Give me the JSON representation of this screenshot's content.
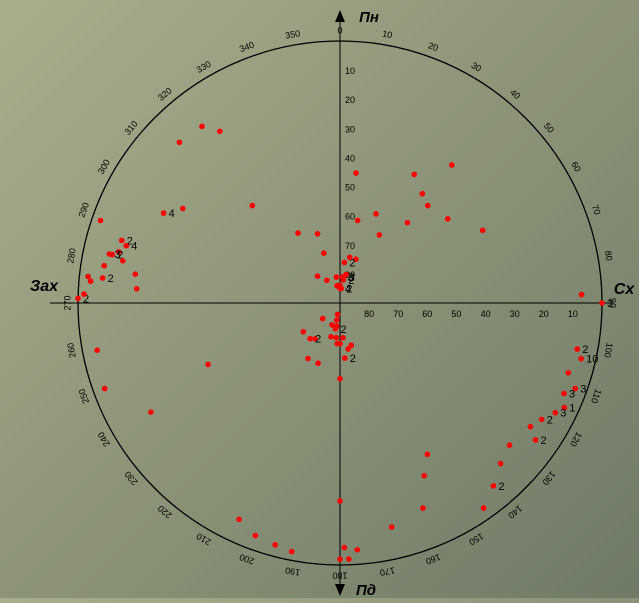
{
  "chart_data": {
    "type": "scatter",
    "projection": "polar",
    "angular_unit": "degrees",
    "angular_direction": "clockwise",
    "zero_at": "top",
    "radial_unit": "degrees",
    "radial_reversed": true,
    "compass_labels": {
      "north": "Пн",
      "east": "Сх",
      "south": "Пд",
      "west": "Зах"
    },
    "angular_ticks": [
      "0",
      "10",
      "20",
      "30",
      "40",
      "50",
      "60",
      "70",
      "80",
      "90",
      "100",
      "110",
      "120",
      "130",
      "140",
      "150",
      "160",
      "170",
      "180",
      "190",
      "200",
      "210",
      "220",
      "230",
      "240",
      "250",
      "260",
      "270",
      "280",
      "290",
      "300",
      "310",
      "320",
      "330",
      "340",
      "350"
    ],
    "radial_ticks_north": [
      "10",
      "20",
      "30",
      "40",
      "50",
      "60",
      "70",
      "80"
    ],
    "radial_ticks_east": [
      "10",
      "20",
      "30",
      "40",
      "50",
      "60",
      "70",
      "80"
    ],
    "colors": {
      "point": "#ff0000",
      "axis": "#000000",
      "label": "#000000"
    },
    "points": [
      {
        "az": 0,
        "dip": 85,
        "count": "4"
      },
      {
        "az": 0,
        "dip": 84
      },
      {
        "az": 5,
        "dip": 85,
        "count": "2"
      },
      {
        "az": 5,
        "dip": 81,
        "count": "3"
      },
      {
        "az": 8,
        "dip": 82,
        "count": "2"
      },
      {
        "az": 8,
        "dip": 81,
        "count": "3"
      },
      {
        "az": 12,
        "dip": 80
      },
      {
        "az": 357,
        "dip": 84
      },
      {
        "az": 354,
        "dip": 84
      },
      {
        "az": 350,
        "dip": 84
      },
      {
        "az": 20,
        "dip": 74
      },
      {
        "az": 6,
        "dip": 76,
        "count": "2"
      },
      {
        "az": 12,
        "dip": 74
      },
      {
        "az": 12,
        "dip": 61
      },
      {
        "az": 30,
        "dip": 63
      },
      {
        "az": 40,
        "dip": 54
      },
      {
        "az": 52,
        "dip": 43
      },
      {
        "az": 63,
        "dip": 35
      },
      {
        "az": 39,
        "dip": 29
      },
      {
        "az": 30,
        "dip": 39
      },
      {
        "az": 42,
        "dip": 45
      },
      {
        "az": 37,
        "dip": 43
      },
      {
        "az": 22,
        "dip": 57
      },
      {
        "az": 88,
        "dip": 7
      },
      {
        "az": 90,
        "dip": 0,
        "count": "3"
      },
      {
        "az": 342,
        "dip": 65
      },
      {
        "az": 329,
        "dip": 62
      },
      {
        "az": 318,
        "dip": 45
      },
      {
        "az": 301,
        "dip": 27
      },
      {
        "az": 297,
        "dip": 22,
        "count": "4"
      },
      {
        "az": 286,
        "dip": 12,
        "count": "2"
      },
      {
        "az": 285,
        "dip": 14,
        "count": "4"
      },
      {
        "az": 283,
        "dip": 12
      },
      {
        "az": 282,
        "dip": 10,
        "count": "2"
      },
      {
        "az": 282,
        "dip": 9,
        "count": "3"
      },
      {
        "az": 281,
        "dip": 14
      },
      {
        "az": 279,
        "dip": 8
      },
      {
        "az": 276,
        "dip": 8,
        "count": "2"
      },
      {
        "az": 276,
        "dip": 3
      },
      {
        "az": 278,
        "dip": 19
      },
      {
        "az": 275,
        "dip": 4
      },
      {
        "az": 274,
        "dip": 20
      },
      {
        "az": 271,
        "dip": 0,
        "count": "2"
      },
      {
        "az": 342,
        "dip": 72
      },
      {
        "az": 320,
        "dip": 78
      },
      {
        "az": 330,
        "dip": 81
      },
      {
        "az": 352,
        "dip": 81
      },
      {
        "az": 101,
        "dip": 7,
        "count": "2"
      },
      {
        "az": 103,
        "dip": 5,
        "count": "10"
      },
      {
        "az": 107,
        "dip": 8
      },
      {
        "az": 110,
        "dip": 4,
        "count": "3"
      },
      {
        "az": 112,
        "dip": 7,
        "count": "3"
      },
      {
        "az": 115,
        "dip": 5,
        "count": "1"
      },
      {
        "az": 117,
        "dip": 7,
        "count": "3"
      },
      {
        "az": 120,
        "dip": 10,
        "count": "2"
      },
      {
        "az": 123,
        "dip": 12
      },
      {
        "az": 125,
        "dip": 8,
        "count": "2"
      },
      {
        "az": 130,
        "dip": 14
      },
      {
        "az": 135,
        "dip": 12
      },
      {
        "az": 140,
        "dip": 8,
        "count": "2"
      },
      {
        "az": 150,
        "dip": 30
      },
      {
        "az": 154,
        "dip": 24
      },
      {
        "az": 158,
        "dip": 14
      },
      {
        "az": 145,
        "dip": 4
      },
      {
        "az": 178,
        "dip": 2
      },
      {
        "az": 180,
        "dip": 2
      },
      {
        "az": 176,
        "dip": 5
      },
      {
        "az": 180,
        "dip": 22
      },
      {
        "az": 180,
        "dip": 64
      },
      {
        "az": 175,
        "dip": 71,
        "count": "2"
      },
      {
        "az": 170,
        "dip": 74
      },
      {
        "az": 165,
        "dip": 75
      },
      {
        "az": 180,
        "dip": 76
      },
      {
        "az": 175,
        "dip": 78
      },
      {
        "az": 184,
        "dip": 76
      },
      {
        "az": 186,
        "dip": 78
      },
      {
        "az": 188,
        "dip": 82
      },
      {
        "az": 190,
        "dip": 81,
        "count": "2"
      },
      {
        "az": 191,
        "dip": 84
      },
      {
        "az": 192,
        "dip": 86
      },
      {
        "az": 195,
        "dip": 78
      },
      {
        "az": 200,
        "dip": 82
      },
      {
        "az": 210,
        "dip": 68
      },
      {
        "az": 215,
        "dip": 75
      },
      {
        "az": 220,
        "dip": 74,
        "count": "2"
      },
      {
        "az": 228,
        "dip": 82
      },
      {
        "az": 232,
        "dip": 74
      },
      {
        "az": 245,
        "dip": 40
      },
      {
        "az": 200,
        "dip": 68
      },
      {
        "az": 240,
        "dip": 15
      },
      {
        "az": 250,
        "dip": 4
      },
      {
        "az": 259,
        "dip": 5
      },
      {
        "az": 205,
        "dip": 8
      },
      {
        "az": 200,
        "dip": 5
      },
      {
        "az": 195,
        "dip": 4
      },
      {
        "az": 191,
        "dip": 3
      },
      {
        "az": 179,
        "dip": 6
      },
      {
        "az": 272,
        "dip": 2
      },
      {
        "az": 289,
        "dip": 3
      },
      {
        "az": 322,
        "dip": 13
      },
      {
        "az": 315,
        "dip": 12
      },
      {
        "az": 325,
        "dip": 18
      },
      {
        "az": 7,
        "dip": 45
      },
      {
        "az": 167,
        "dip": 11
      }
    ]
  }
}
